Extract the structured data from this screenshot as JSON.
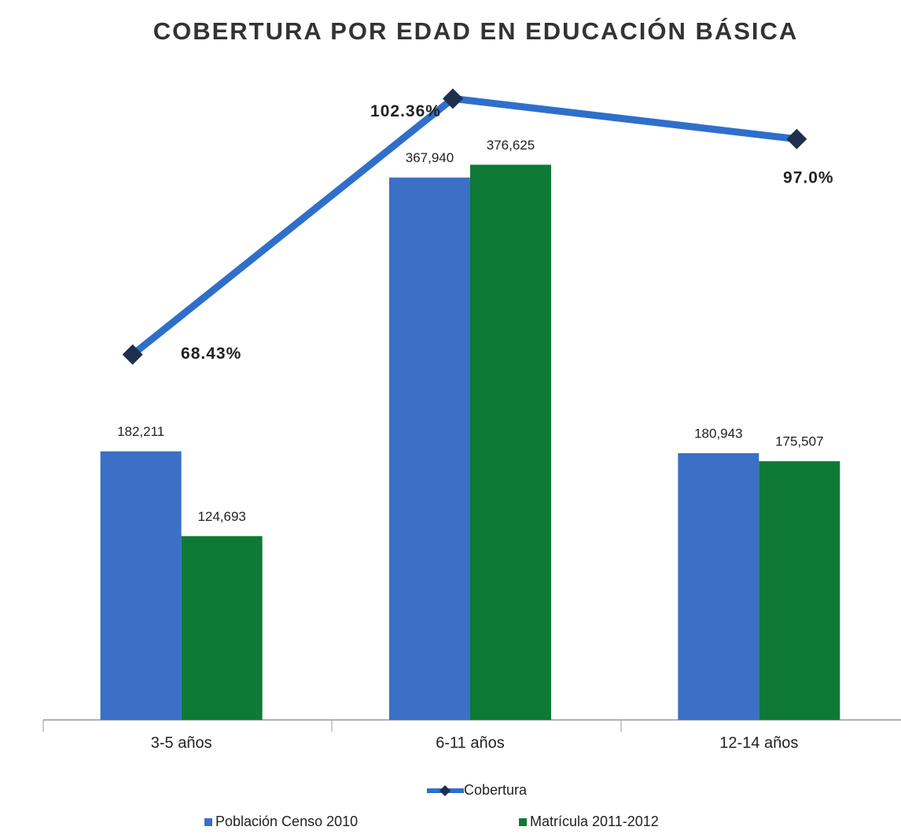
{
  "chart_data": {
    "type": "bar",
    "title": "COBERTURA POR EDAD EN EDUCACIÓN BÁSICA",
    "categories": [
      "3-5 años",
      "6-11 años",
      "12-14 años"
    ],
    "ylim": [
      0,
      435000
    ],
    "y2lim": [
      20,
      105
    ],
    "series": [
      {
        "name": "Población Censo 2010",
        "color": "#3b70c6",
        "values": [
          182211,
          367940,
          180943
        ],
        "value_labels": [
          "182,211",
          "367,940",
          "180,943"
        ]
      },
      {
        "name": "Matrícula 2011-2012",
        "color": "#0e7a36",
        "values": [
          124693,
          376625,
          175507
        ],
        "value_labels": [
          "124,693",
          "376,625",
          "175,507"
        ]
      },
      {
        "name": "Cobertura",
        "type": "line",
        "axis": "y2",
        "color": "#2f6fca",
        "marker_color": "#1f2f4f",
        "values": [
          68.43,
          102.36,
          97.0
        ],
        "value_labels": [
          "68.43%",
          "102.36%",
          "97.0%"
        ]
      }
    ]
  }
}
